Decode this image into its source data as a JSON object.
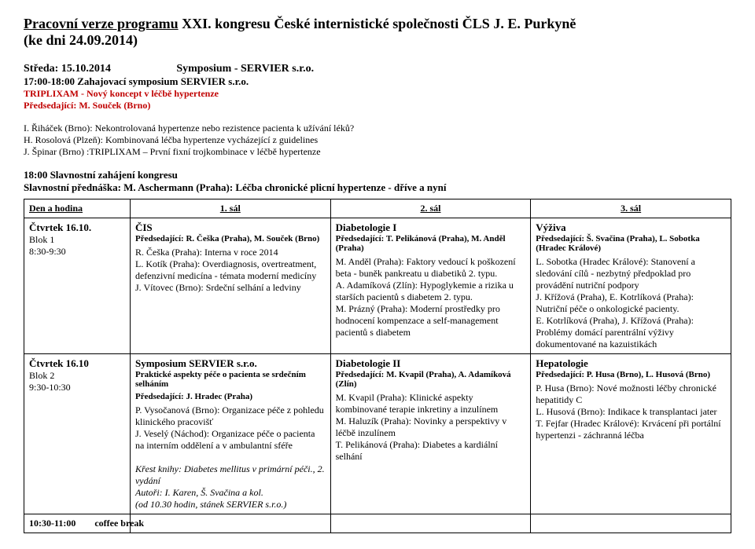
{
  "title_underline": "Pracovní verze programu",
  "title_rest": " XXI. kongresu České internistické společnosti ČLS J. E. Purkyně",
  "title_date": "(ke dni 24.09.2014)",
  "day": "Středa: 15.10.2014",
  "symposium": "Symposium - SERVIER s.r.o.",
  "session_time": "17:00-18:00 Zahajovací symposium SERVIER s.r.o.",
  "session_topic": "TRIPLIXAM - Nový koncept v léčbě hypertenze",
  "session_chair": "Předsedající: M. Souček (Brno)",
  "talk1": "I. Řiháček (Brno): Nekontrolovaná hypertenze nebo rezistence pacienta k užívání léků?",
  "talk2": "H. Rosolová (Plzeň): Kombinovaná léčba hypertenze vycházející z guidelines",
  "talk3": "J. Špinar (Brno) :TRIPLIXAM – První fixní trojkombinace v léčbě hypertenze",
  "opening1": "18:00 Slavnostní zahájení kongresu",
  "opening2": "Slavnostní přednáška: M. Aschermann (Praha): Léčba chronické plicní hypertenze - dříve a nyní",
  "hdr_day": "Den a hodina",
  "hdr_s1": "1. sál",
  "hdr_s2": "2. sál",
  "hdr_s3": "3. sál",
  "r1_day_a": "Čtvrtek 16.10.",
  "r1_day_b": "Blok 1",
  "r1_day_c": "8:30-9:30",
  "r1s1_title": "ČIS",
  "r1s1_chair": "Předsedající: R. Češka (Praha), M. Souček (Brno)",
  "r1s1_l1": "R. Češka (Praha): Interna v roce 2014",
  "r1s1_l2": "L. Kotík (Praha): Overdiagnosis, overtreatment, defenzivní medicína - témata moderní medicíny",
  "r1s1_l3": "J. Vítovec (Brno): Srdeční selhání a ledviny",
  "r1s2_title": "Diabetologie I",
  "r1s2_chair": "Předsedající: T. Pelikánová (Praha), M. Anděl (Praha)",
  "r1s2_l1": "M. Anděl (Praha): Faktory vedoucí k poškození beta - buněk pankreatu u diabetiků 2. typu.",
  "r1s2_l2": "A. Adamíková (Zlín): Hypoglykemie a rizika u starších pacientů s diabetem 2. typu.",
  "r1s2_l3": "M. Prázný (Praha): Moderní prostředky pro hodnocení kompenzace a self-management pacientů s diabetem",
  "r1s3_title": "Výživa",
  "r1s3_chair": "Předsedající: Š. Svačina (Praha), L. Sobotka (Hradec Králové)",
  "r1s3_l1": "L. Sobotka (Hradec Králové): Stanovení a sledování cílů - nezbytný předpoklad pro provádění nutriční podpory",
  "r1s3_l2": "J. Křížová (Praha), E. Kotrlíková (Praha): Nutriční péče o onkologické pacienty.",
  "r1s3_l3": "E. Kotrlíková (Praha), J. Křížová (Praha): Problémy domácí parentrální výživy dokumentované na kazuistikách",
  "r2_day_a": "Čtvrtek 16.10",
  "r2_day_b": "Blok 2",
  "r2_day_c": "9:30-10:30",
  "r2s1_title": "Symposium SERVIER s.r.o.",
  "r2s1_sub": "Praktické aspekty péče o pacienta se srdečním selháním",
  "r2s1_chair": "Předsedající: J. Hradec (Praha)",
  "r2s1_l1": "P. Vysočanová (Brno): Organizace péče z pohledu klinického pracovišť",
  "r2s1_l2": " J. Veselý (Náchod): Organizace péče o pacienta na interním oddělení a v ambulantní sféře",
  "r2s1_it1": "Křest knihy: Diabetes mellitus v primární péči., 2. vydání",
  "r2s1_it2": "Autoři: I. Karen, Š. Svačina a kol.",
  "r2s1_it3": "(od 10.30 hodin, stánek SERVIER s.r.o.)",
  "r2s2_title": "Diabetologie II",
  "r2s2_chair": "Předsedající: M. Kvapil (Praha), A. Adamíková (Zlín)",
  "r2s2_l1": "M. Kvapil (Praha): Klinické aspekty kombinované terapie inkretiny a inzulínem",
  "r2s2_l2": "M. Haluzík (Praha): Novinky a perspektivy v léčbě inzulínem",
  "r2s2_l3": "T. Pelikánová (Praha): Diabetes a kardiální selhání",
  "r2s3_title": "Hepatologie",
  "r2s3_chair": "Předsedající: P. Husa (Brno), L. Husová (Brno)",
  "r2s3_l1": "P. Husa (Brno): Nové možnosti léčby chronické hepatitidy C",
  "r2s3_l2": "L. Husová (Brno): Indikace k transplantaci jater",
  "r2s3_l3": "T. Fejfar (Hradec Králové): Krvácení při portální hypertenzi - záchranná léčba",
  "r3_day": "10:30-11:00        coffee break"
}
